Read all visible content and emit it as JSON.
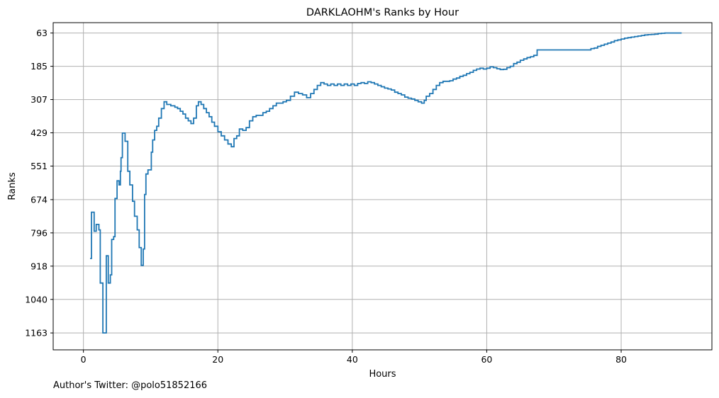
{
  "chart_data": {
    "type": "line",
    "style": "step",
    "title": "DARKLAOHM's Ranks by Hour",
    "xlabel": "Hours",
    "ylabel": "Ranks",
    "xlim": [
      -4.5,
      93.5
    ],
    "ylim": [
      1225,
      25
    ],
    "y_inverted": true,
    "grid": true,
    "x_ticks": [
      0,
      20,
      40,
      60,
      80
    ],
    "y_ticks": [
      63,
      185,
      307,
      429,
      551,
      674,
      796,
      918,
      1040,
      1163
    ],
    "line_color": "#1f77b4",
    "series": [
      {
        "points": [
          [
            1.0,
            890
          ],
          [
            1.2,
            720
          ],
          [
            1.6,
            790
          ],
          [
            1.9,
            765
          ],
          [
            2.3,
            785
          ],
          [
            2.5,
            980
          ],
          [
            2.9,
            1163
          ],
          [
            3.4,
            880
          ],
          [
            3.7,
            980
          ],
          [
            4.0,
            950
          ],
          [
            4.2,
            820
          ],
          [
            4.5,
            810
          ],
          [
            4.7,
            670
          ],
          [
            5.0,
            605
          ],
          [
            5.3,
            620
          ],
          [
            5.5,
            570
          ],
          [
            5.6,
            520
          ],
          [
            5.8,
            430
          ],
          [
            6.2,
            460
          ],
          [
            6.6,
            570
          ],
          [
            6.9,
            620
          ],
          [
            7.3,
            680
          ],
          [
            7.6,
            735
          ],
          [
            8.0,
            785
          ],
          [
            8.3,
            850
          ],
          [
            8.6,
            915
          ],
          [
            8.9,
            855
          ],
          [
            9.1,
            655
          ],
          [
            9.3,
            580
          ],
          [
            9.6,
            565
          ],
          [
            9.9,
            565
          ],
          [
            10.1,
            500
          ],
          [
            10.3,
            455
          ],
          [
            10.6,
            420
          ],
          [
            10.9,
            405
          ],
          [
            11.2,
            375
          ],
          [
            11.6,
            340
          ],
          [
            12.0,
            315
          ],
          [
            12.4,
            325
          ],
          [
            13.0,
            330
          ],
          [
            13.6,
            335
          ],
          [
            14.0,
            340
          ],
          [
            14.4,
            350
          ],
          [
            14.8,
            360
          ],
          [
            15.2,
            375
          ],
          [
            15.6,
            385
          ],
          [
            16.0,
            395
          ],
          [
            16.4,
            375
          ],
          [
            16.8,
            330
          ],
          [
            17.1,
            315
          ],
          [
            17.5,
            325
          ],
          [
            17.9,
            340
          ],
          [
            18.3,
            355
          ],
          [
            18.7,
            370
          ],
          [
            19.1,
            390
          ],
          [
            19.5,
            405
          ],
          [
            20.0,
            425
          ],
          [
            20.5,
            440
          ],
          [
            21.0,
            455
          ],
          [
            21.5,
            470
          ],
          [
            22.0,
            480
          ],
          [
            22.4,
            450
          ],
          [
            22.8,
            440
          ],
          [
            23.2,
            415
          ],
          [
            23.7,
            420
          ],
          [
            24.2,
            410
          ],
          [
            24.7,
            385
          ],
          [
            25.2,
            370
          ],
          [
            25.7,
            365
          ],
          [
            26.2,
            365
          ],
          [
            26.7,
            355
          ],
          [
            27.2,
            350
          ],
          [
            27.7,
            340
          ],
          [
            28.2,
            330
          ],
          [
            28.7,
            320
          ],
          [
            29.2,
            320
          ],
          [
            29.7,
            315
          ],
          [
            30.2,
            310
          ],
          [
            30.8,
            295
          ],
          [
            31.4,
            280
          ],
          [
            32.0,
            285
          ],
          [
            32.6,
            290
          ],
          [
            33.2,
            300
          ],
          [
            33.8,
            285
          ],
          [
            34.3,
            270
          ],
          [
            34.8,
            255
          ],
          [
            35.3,
            245
          ],
          [
            35.8,
            250
          ],
          [
            36.3,
            255
          ],
          [
            36.8,
            250
          ],
          [
            37.3,
            255
          ],
          [
            37.8,
            250
          ],
          [
            38.3,
            255
          ],
          [
            38.8,
            250
          ],
          [
            39.3,
            255
          ],
          [
            39.8,
            250
          ],
          [
            40.3,
            255
          ],
          [
            40.8,
            248
          ],
          [
            41.3,
            245
          ],
          [
            41.8,
            248
          ],
          [
            42.3,
            242
          ],
          [
            42.8,
            245
          ],
          [
            43.3,
            250
          ],
          [
            43.8,
            255
          ],
          [
            44.3,
            260
          ],
          [
            44.8,
            265
          ],
          [
            45.3,
            268
          ],
          [
            45.8,
            272
          ],
          [
            46.3,
            280
          ],
          [
            46.8,
            285
          ],
          [
            47.3,
            290
          ],
          [
            47.8,
            298
          ],
          [
            48.3,
            302
          ],
          [
            48.8,
            305
          ],
          [
            49.3,
            310
          ],
          [
            49.8,
            315
          ],
          [
            50.3,
            320
          ],
          [
            50.7,
            310
          ],
          [
            51.0,
            295
          ],
          [
            51.5,
            285
          ],
          [
            52.0,
            270
          ],
          [
            52.5,
            255
          ],
          [
            53.0,
            245
          ],
          [
            53.5,
            240
          ],
          [
            54.0,
            240
          ],
          [
            54.5,
            238
          ],
          [
            55.0,
            232
          ],
          [
            55.5,
            228
          ],
          [
            56.0,
            222
          ],
          [
            56.5,
            218
          ],
          [
            57.0,
            212
          ],
          [
            57.5,
            207
          ],
          [
            58.0,
            200
          ],
          [
            58.5,
            195
          ],
          [
            59.0,
            192
          ],
          [
            59.5,
            195
          ],
          [
            60.0,
            192
          ],
          [
            60.5,
            187
          ],
          [
            61.0,
            190
          ],
          [
            61.5,
            194
          ],
          [
            62.0,
            197
          ],
          [
            62.5,
            196
          ],
          [
            63.0,
            190
          ],
          [
            63.5,
            185
          ],
          [
            64.0,
            175
          ],
          [
            64.5,
            170
          ],
          [
            65.0,
            163
          ],
          [
            65.5,
            158
          ],
          [
            66.0,
            153
          ],
          [
            66.5,
            150
          ],
          [
            67.0,
            145
          ],
          [
            67.5,
            125
          ],
          [
            75.0,
            125
          ],
          [
            75.5,
            120
          ],
          [
            76.0,
            118
          ],
          [
            76.5,
            112
          ],
          [
            77.0,
            108
          ],
          [
            77.5,
            104
          ],
          [
            78.0,
            100
          ],
          [
            78.5,
            96
          ],
          [
            79.0,
            91
          ],
          [
            79.5,
            88
          ],
          [
            80.0,
            85
          ],
          [
            80.5,
            82
          ],
          [
            81.0,
            80
          ],
          [
            81.5,
            78
          ],
          [
            82.0,
            76
          ],
          [
            82.5,
            74
          ],
          [
            83.0,
            72
          ],
          [
            83.5,
            70
          ],
          [
            84.0,
            69
          ],
          [
            84.5,
            68
          ],
          [
            85.0,
            67
          ],
          [
            85.5,
            65
          ],
          [
            86.0,
            64
          ],
          [
            86.5,
            63
          ],
          [
            89.0,
            63
          ]
        ]
      }
    ]
  },
  "footer": {
    "author": "Author's Twitter: @polo51852166"
  }
}
